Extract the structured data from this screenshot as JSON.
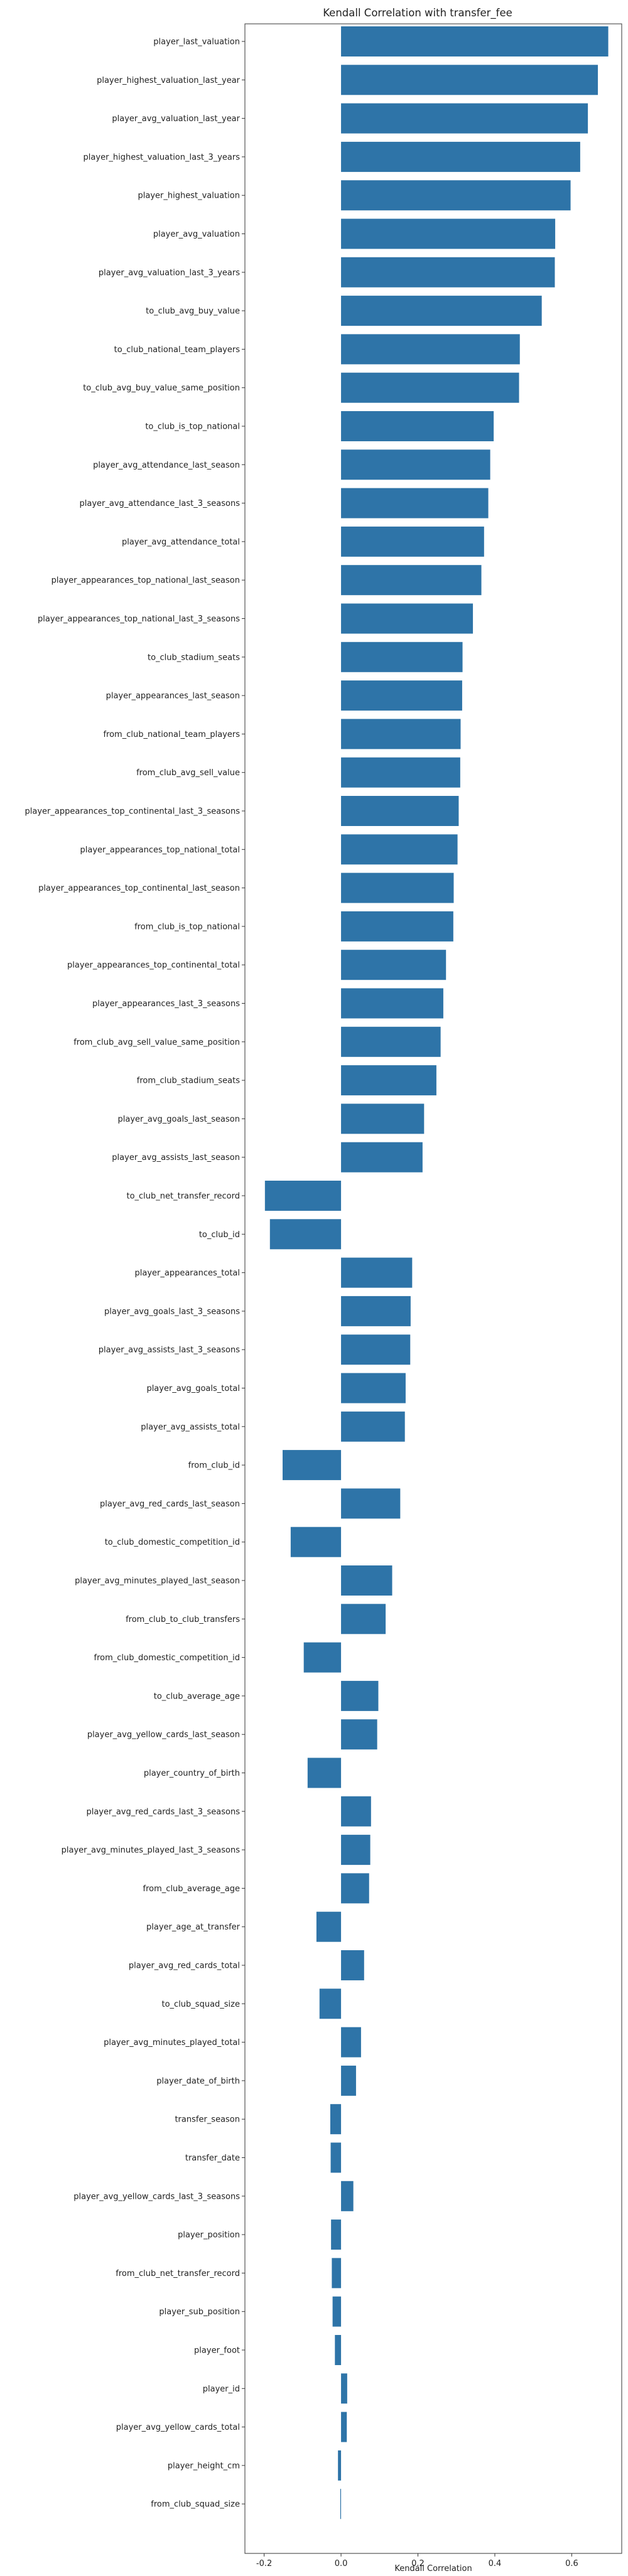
{
  "chart_data": {
    "type": "bar",
    "orientation": "horizontal",
    "title": "Kendall Correlation with transfer_fee",
    "xlabel": "Kendall Correlation",
    "ylabel": "",
    "xlim": [
      -0.25,
      0.73
    ],
    "xticks": [
      -0.2,
      0.0,
      0.2,
      0.4,
      0.6
    ],
    "xtick_labels": [
      "-0.2",
      "0.0",
      "0.2",
      "0.4",
      "0.6"
    ],
    "grid": false,
    "bar_color": "#2e74a8",
    "categories": [
      "player_last_valuation",
      "player_highest_valuation_last_year",
      "player_avg_valuation_last_year",
      "player_highest_valuation_last_3_years",
      "player_highest_valuation",
      "player_avg_valuation",
      "player_avg_valuation_last_3_years",
      "to_club_avg_buy_value",
      "to_club_national_team_players",
      "to_club_avg_buy_value_same_position",
      "to_club_is_top_national",
      "player_avg_attendance_last_season",
      "player_avg_attendance_last_3_seasons",
      "player_avg_attendance_total",
      "player_appearances_top_national_last_season",
      "player_appearances_top_national_last_3_seasons",
      "to_club_stadium_seats",
      "player_appearances_last_season",
      "from_club_national_team_players",
      "from_club_avg_sell_value",
      "player_appearances_top_continental_last_3_seasons",
      "player_appearances_top_national_total",
      "player_appearances_top_continental_last_season",
      "from_club_is_top_national",
      "player_appearances_top_continental_total",
      "player_appearances_last_3_seasons",
      "from_club_avg_sell_value_same_position",
      "from_club_stadium_seats",
      "player_avg_goals_last_season",
      "player_avg_assists_last_season",
      "to_club_net_transfer_record",
      "to_club_id",
      "player_appearances_total",
      "player_avg_goals_last_3_seasons",
      "player_avg_assists_last_3_seasons",
      "player_avg_goals_total",
      "player_avg_assists_total",
      "from_club_id",
      "player_avg_red_cards_last_season",
      "to_club_domestic_competition_id",
      "player_avg_minutes_played_last_season",
      "from_club_to_club_transfers",
      "from_club_domestic_competition_id",
      "to_club_average_age",
      "player_avg_yellow_cards_last_season",
      "player_country_of_birth",
      "player_avg_red_cards_last_3_seasons",
      "player_avg_minutes_played_last_3_seasons",
      "from_club_average_age",
      "player_age_at_transfer",
      "player_avg_red_cards_total",
      "to_club_squad_size",
      "player_avg_minutes_played_total",
      "player_date_of_birth",
      "transfer_season",
      "transfer_date",
      "player_avg_yellow_cards_last_3_seasons",
      "player_position",
      "from_club_net_transfer_record",
      "player_sub_position",
      "player_foot",
      "player_id",
      "player_avg_yellow_cards_total",
      "player_height_cm",
      "from_club_squad_size"
    ],
    "values": [
      0.695,
      0.668,
      0.642,
      0.622,
      0.597,
      0.557,
      0.556,
      0.522,
      0.465,
      0.463,
      0.397,
      0.388,
      0.383,
      0.372,
      0.365,
      0.343,
      0.316,
      0.315,
      0.311,
      0.31,
      0.306,
      0.303,
      0.293,
      0.292,
      0.273,
      0.266,
      0.259,
      0.248,
      0.216,
      0.212,
      -0.198,
      -0.185,
      0.185,
      0.181,
      0.18,
      0.168,
      0.166,
      -0.152,
      0.154,
      -0.131,
      0.133,
      0.116,
      -0.097,
      0.097,
      0.094,
      -0.087,
      0.078,
      0.076,
      0.073,
      -0.064,
      0.06,
      -0.056,
      0.052,
      0.039,
      -0.028,
      -0.027,
      0.032,
      -0.026,
      -0.024,
      -0.022,
      -0.016,
      0.016,
      0.015,
      -0.008,
      -0.002
    ]
  }
}
